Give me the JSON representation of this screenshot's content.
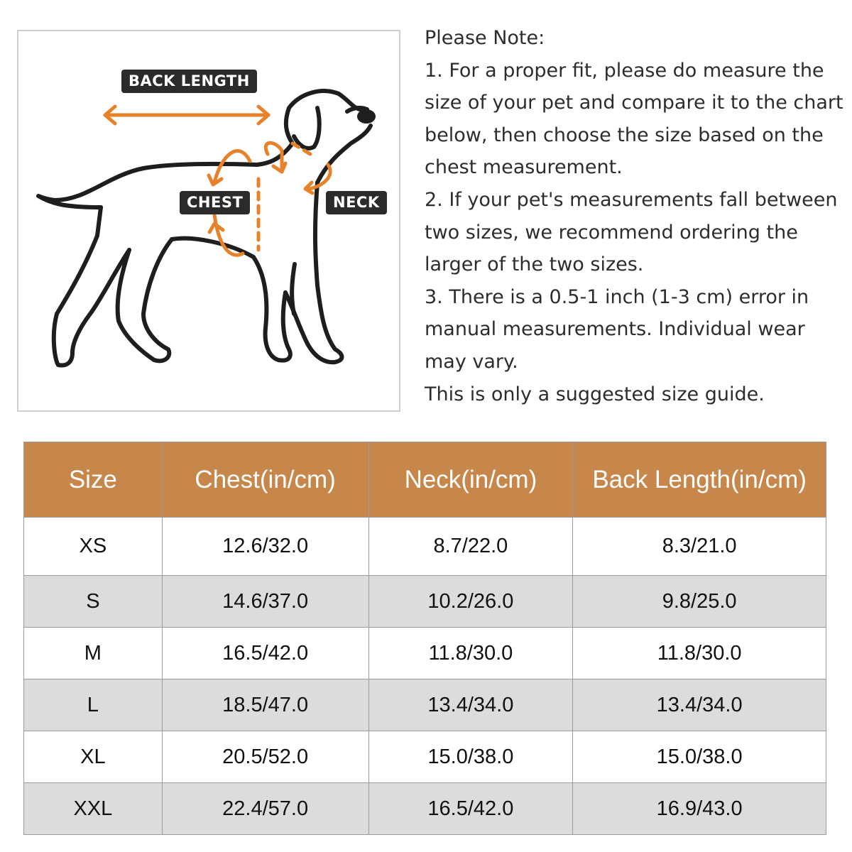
{
  "diagram": {
    "labels": {
      "back_length": "BACK LENGTH",
      "chest": "CHEST",
      "neck": "NECK"
    },
    "accent_color": "#e8822a",
    "label_bg": "#2b2b2b"
  },
  "notes": {
    "lines": [
      "Please Note:",
      "1. For a proper fit, please do measure the",
      "size of your pet and compare it to the chart",
      "below, then choose the size based on the",
      "chest measurement.",
      "2. If your pet's measurements fall between",
      "two sizes, we recommend ordering the",
      "larger of the two sizes.",
      "3. There is a 0.5-1 inch (1-3 cm) error in",
      "manual measurements. Individual wear",
      "may vary.",
      "This is only a suggested size guide."
    ]
  },
  "table": {
    "header_color": "#c8874a",
    "headers": [
      "Size",
      "Chest(in/cm)",
      "Neck(in/cm)",
      "Back Length(in/cm)"
    ],
    "rows": [
      [
        "XS",
        "12.6/32.0",
        "8.7/22.0",
        "8.3/21.0"
      ],
      [
        "S",
        "14.6/37.0",
        "10.2/26.0",
        "9.8/25.0"
      ],
      [
        "M",
        "16.5/42.0",
        "11.8/30.0",
        "11.8/30.0"
      ],
      [
        "L",
        "18.5/47.0",
        "13.4/34.0",
        "13.4/34.0"
      ],
      [
        "XL",
        "20.5/52.0",
        "15.0/38.0",
        "15.0/38.0"
      ],
      [
        "XXL",
        "22.4/57.0",
        "16.5/42.0",
        "16.9/43.0"
      ]
    ]
  }
}
